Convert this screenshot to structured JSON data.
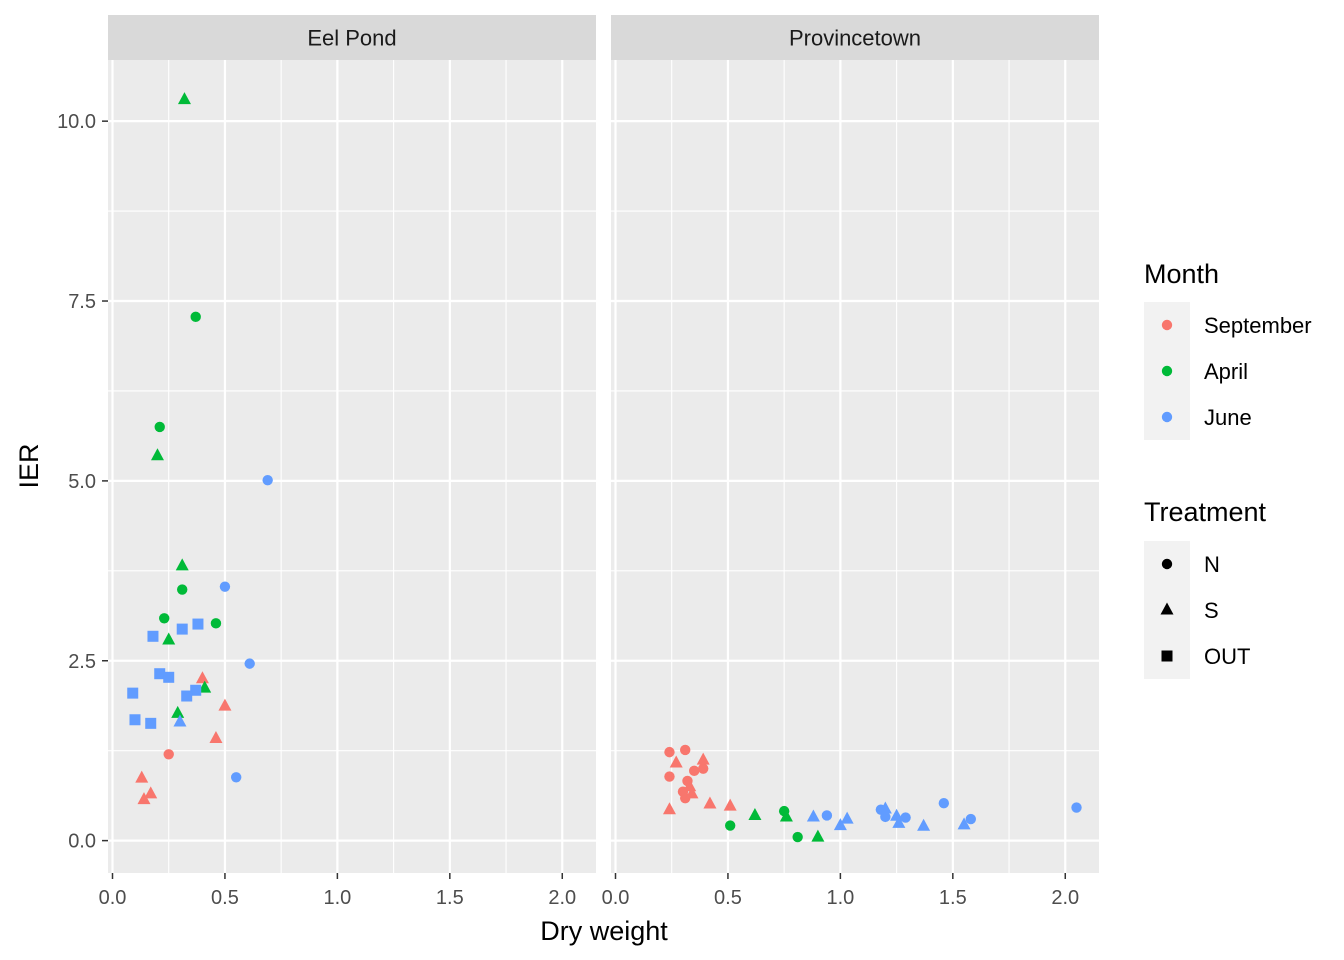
{
  "chart_data": {
    "type": "scatter",
    "xlabel": "Dry weight",
    "ylabel": "IER",
    "xlim": [
      -0.02,
      2.15
    ],
    "ylim": [
      -0.45,
      10.85
    ],
    "x_ticks": [
      0.0,
      0.5,
      1.0,
      1.5,
      2.0
    ],
    "x_tick_labels": [
      "0.0",
      "0.5",
      "1.0",
      "1.5",
      "2.0"
    ],
    "y_ticks": [
      0.0,
      2.5,
      5.0,
      7.5,
      10.0
    ],
    "y_tick_labels": [
      "0.0",
      "2.5",
      "5.0",
      "7.5",
      "10.0"
    ],
    "grid": true,
    "legend_placement": "right",
    "facets": [
      "Eel Pond",
      "Provincetown"
    ],
    "color_legend": {
      "title": "Month",
      "entries": [
        {
          "label": "September",
          "color": "#F8766D"
        },
        {
          "label": "April",
          "color": "#00BA38"
        },
        {
          "label": "June",
          "color": "#619CFF"
        }
      ]
    },
    "shape_legend": {
      "title": "Treatment",
      "entries": [
        {
          "label": "N",
          "shape": "circle"
        },
        {
          "label": "S",
          "shape": "triangle"
        },
        {
          "label": "OUT",
          "shape": "square"
        }
      ]
    },
    "points": [
      {
        "facet": "Eel Pond",
        "month": "September",
        "treatment": "N",
        "x": 0.25,
        "y": 1.2
      },
      {
        "facet": "Eel Pond",
        "month": "September",
        "treatment": "S",
        "x": 0.13,
        "y": 0.87
      },
      {
        "facet": "Eel Pond",
        "month": "September",
        "treatment": "S",
        "x": 0.17,
        "y": 0.65
      },
      {
        "facet": "Eel Pond",
        "month": "September",
        "treatment": "S",
        "x": 0.14,
        "y": 0.57
      },
      {
        "facet": "Eel Pond",
        "month": "September",
        "treatment": "S",
        "x": 0.4,
        "y": 2.25
      },
      {
        "facet": "Eel Pond",
        "month": "September",
        "treatment": "S",
        "x": 0.5,
        "y": 1.87
      },
      {
        "facet": "Eel Pond",
        "month": "September",
        "treatment": "S",
        "x": 0.46,
        "y": 1.42
      },
      {
        "facet": "Eel Pond",
        "month": "April",
        "treatment": "S",
        "x": 0.32,
        "y": 10.3
      },
      {
        "facet": "Eel Pond",
        "month": "April",
        "treatment": "N",
        "x": 0.37,
        "y": 7.28
      },
      {
        "facet": "Eel Pond",
        "month": "April",
        "treatment": "N",
        "x": 0.21,
        "y": 5.75
      },
      {
        "facet": "Eel Pond",
        "month": "April",
        "treatment": "S",
        "x": 0.2,
        "y": 5.35
      },
      {
        "facet": "Eel Pond",
        "month": "April",
        "treatment": "S",
        "x": 0.31,
        "y": 3.82
      },
      {
        "facet": "Eel Pond",
        "month": "April",
        "treatment": "N",
        "x": 0.31,
        "y": 3.49
      },
      {
        "facet": "Eel Pond",
        "month": "April",
        "treatment": "N",
        "x": 0.23,
        "y": 3.09
      },
      {
        "facet": "Eel Pond",
        "month": "April",
        "treatment": "N",
        "x": 0.46,
        "y": 3.02
      },
      {
        "facet": "Eel Pond",
        "month": "April",
        "treatment": "S",
        "x": 0.25,
        "y": 2.79
      },
      {
        "facet": "Eel Pond",
        "month": "April",
        "treatment": "S",
        "x": 0.41,
        "y": 2.12
      },
      {
        "facet": "Eel Pond",
        "month": "April",
        "treatment": "S",
        "x": 0.29,
        "y": 1.77
      },
      {
        "facet": "Eel Pond",
        "month": "June",
        "treatment": "N",
        "x": 0.69,
        "y": 5.01
      },
      {
        "facet": "Eel Pond",
        "month": "June",
        "treatment": "N",
        "x": 0.5,
        "y": 3.53
      },
      {
        "facet": "Eel Pond",
        "month": "June",
        "treatment": "N",
        "x": 0.61,
        "y": 2.46
      },
      {
        "facet": "Eel Pond",
        "month": "June",
        "treatment": "N",
        "x": 0.55,
        "y": 0.88
      },
      {
        "facet": "Eel Pond",
        "month": "June",
        "treatment": "S",
        "x": 0.3,
        "y": 1.65
      },
      {
        "facet": "Eel Pond",
        "month": "June",
        "treatment": "OUT",
        "x": 0.38,
        "y": 3.01
      },
      {
        "facet": "Eel Pond",
        "month": "June",
        "treatment": "OUT",
        "x": 0.31,
        "y": 2.94
      },
      {
        "facet": "Eel Pond",
        "month": "June",
        "treatment": "OUT",
        "x": 0.18,
        "y": 2.84
      },
      {
        "facet": "Eel Pond",
        "month": "June",
        "treatment": "OUT",
        "x": 0.21,
        "y": 2.32
      },
      {
        "facet": "Eel Pond",
        "month": "June",
        "treatment": "OUT",
        "x": 0.25,
        "y": 2.27
      },
      {
        "facet": "Eel Pond",
        "month": "June",
        "treatment": "OUT",
        "x": 0.37,
        "y": 2.09
      },
      {
        "facet": "Eel Pond",
        "month": "June",
        "treatment": "OUT",
        "x": 0.09,
        "y": 2.05
      },
      {
        "facet": "Eel Pond",
        "month": "June",
        "treatment": "OUT",
        "x": 0.33,
        "y": 2.01
      },
      {
        "facet": "Eel Pond",
        "month": "June",
        "treatment": "OUT",
        "x": 0.1,
        "y": 1.68
      },
      {
        "facet": "Eel Pond",
        "month": "June",
        "treatment": "OUT",
        "x": 0.17,
        "y": 1.63
      },
      {
        "facet": "Provincetown",
        "month": "September",
        "treatment": "N",
        "x": 0.24,
        "y": 1.23
      },
      {
        "facet": "Provincetown",
        "month": "September",
        "treatment": "N",
        "x": 0.31,
        "y": 1.26
      },
      {
        "facet": "Provincetown",
        "month": "September",
        "treatment": "N",
        "x": 0.39,
        "y": 1.0
      },
      {
        "facet": "Provincetown",
        "month": "September",
        "treatment": "N",
        "x": 0.35,
        "y": 0.97
      },
      {
        "facet": "Provincetown",
        "month": "September",
        "treatment": "N",
        "x": 0.24,
        "y": 0.89
      },
      {
        "facet": "Provincetown",
        "month": "September",
        "treatment": "N",
        "x": 0.32,
        "y": 0.83
      },
      {
        "facet": "Provincetown",
        "month": "September",
        "treatment": "N",
        "x": 0.3,
        "y": 0.68
      },
      {
        "facet": "Provincetown",
        "month": "September",
        "treatment": "N",
        "x": 0.31,
        "y": 0.59
      },
      {
        "facet": "Provincetown",
        "month": "September",
        "treatment": "S",
        "x": 0.39,
        "y": 1.12
      },
      {
        "facet": "Provincetown",
        "month": "September",
        "treatment": "S",
        "x": 0.27,
        "y": 1.08
      },
      {
        "facet": "Provincetown",
        "month": "September",
        "treatment": "S",
        "x": 0.33,
        "y": 0.75
      },
      {
        "facet": "Provincetown",
        "month": "September",
        "treatment": "S",
        "x": 0.34,
        "y": 0.65
      },
      {
        "facet": "Provincetown",
        "month": "September",
        "treatment": "S",
        "x": 0.42,
        "y": 0.51
      },
      {
        "facet": "Provincetown",
        "month": "September",
        "treatment": "S",
        "x": 0.51,
        "y": 0.48
      },
      {
        "facet": "Provincetown",
        "month": "September",
        "treatment": "S",
        "x": 0.24,
        "y": 0.43
      },
      {
        "facet": "Provincetown",
        "month": "April",
        "treatment": "N",
        "x": 0.51,
        "y": 0.21
      },
      {
        "facet": "Provincetown",
        "month": "April",
        "treatment": "N",
        "x": 0.75,
        "y": 0.41
      },
      {
        "facet": "Provincetown",
        "month": "April",
        "treatment": "N",
        "x": 0.81,
        "y": 0.05
      },
      {
        "facet": "Provincetown",
        "month": "April",
        "treatment": "S",
        "x": 0.62,
        "y": 0.35
      },
      {
        "facet": "Provincetown",
        "month": "April",
        "treatment": "S",
        "x": 0.76,
        "y": 0.33
      },
      {
        "facet": "Provincetown",
        "month": "April",
        "treatment": "S",
        "x": 0.9,
        "y": 0.05
      },
      {
        "facet": "Provincetown",
        "month": "June",
        "treatment": "N",
        "x": 2.05,
        "y": 0.46
      },
      {
        "facet": "Provincetown",
        "month": "June",
        "treatment": "N",
        "x": 1.46,
        "y": 0.52
      },
      {
        "facet": "Provincetown",
        "month": "June",
        "treatment": "N",
        "x": 1.18,
        "y": 0.43
      },
      {
        "facet": "Provincetown",
        "month": "June",
        "treatment": "N",
        "x": 0.94,
        "y": 0.35
      },
      {
        "facet": "Provincetown",
        "month": "June",
        "treatment": "N",
        "x": 1.2,
        "y": 0.33
      },
      {
        "facet": "Provincetown",
        "month": "June",
        "treatment": "N",
        "x": 1.29,
        "y": 0.32
      },
      {
        "facet": "Provincetown",
        "month": "June",
        "treatment": "N",
        "x": 1.58,
        "y": 0.3
      },
      {
        "facet": "Provincetown",
        "month": "June",
        "treatment": "S",
        "x": 1.2,
        "y": 0.44
      },
      {
        "facet": "Provincetown",
        "month": "June",
        "treatment": "S",
        "x": 0.88,
        "y": 0.33
      },
      {
        "facet": "Provincetown",
        "month": "June",
        "treatment": "S",
        "x": 1.25,
        "y": 0.34
      },
      {
        "facet": "Provincetown",
        "month": "June",
        "treatment": "S",
        "x": 1.03,
        "y": 0.3
      },
      {
        "facet": "Provincetown",
        "month": "June",
        "treatment": "S",
        "x": 1.0,
        "y": 0.21
      },
      {
        "facet": "Provincetown",
        "month": "June",
        "treatment": "S",
        "x": 1.26,
        "y": 0.24
      },
      {
        "facet": "Provincetown",
        "month": "June",
        "treatment": "S",
        "x": 1.37,
        "y": 0.2
      },
      {
        "facet": "Provincetown",
        "month": "June",
        "treatment": "S",
        "x": 1.55,
        "y": 0.22
      }
    ]
  },
  "style": {
    "panel_background": "#EBEBEB",
    "strip_background": "#D9D9D9",
    "grid_color": "#FFFFFF",
    "legend_key_background": "#F2F2F2"
  }
}
